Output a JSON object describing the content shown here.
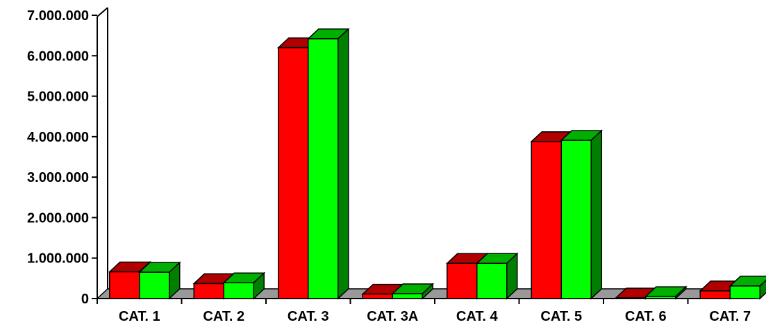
{
  "chart_data": {
    "type": "bar",
    "title": "",
    "xlabel": "",
    "ylabel": "",
    "categories": [
      "CAT. 1",
      "CAT. 2",
      "CAT. 3",
      "CAT. 3A",
      "CAT. 4",
      "CAT. 5",
      "CAT. 6",
      "CAT. 7"
    ],
    "series": [
      {
        "color": "#ff0000",
        "side_color": "#7f0000",
        "top_color": "#b00000",
        "values": [
          660000,
          370000,
          6200000,
          110000,
          870000,
          3880000,
          15000,
          190000
        ]
      },
      {
        "color": "#00ff00",
        "side_color": "#007f00",
        "top_color": "#00b000",
        "values": [
          650000,
          390000,
          6420000,
          120000,
          870000,
          3910000,
          50000,
          310000
        ]
      }
    ],
    "ylim": [
      0,
      7000000
    ],
    "yticks": [
      0,
      1000000,
      2000000,
      3000000,
      4000000,
      5000000,
      6000000,
      7000000
    ],
    "ytick_labels": [
      "0",
      "1.000.000",
      "2.000.000",
      "3.000.000",
      "4.000.000",
      "5.000.000",
      "6.000.000",
      "7.000.000"
    ],
    "grid": false,
    "legend": "none",
    "floor_color": "#999999"
  }
}
